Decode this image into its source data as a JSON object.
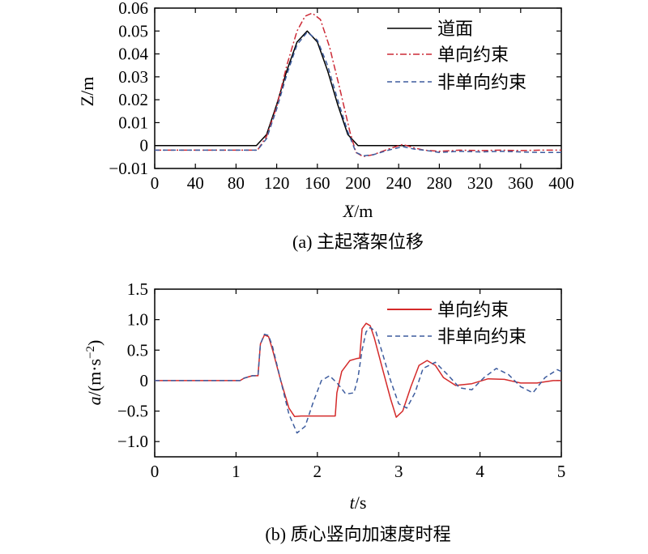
{
  "chart_data": [
    {
      "type": "line",
      "caption": "(a) 主起落架位移",
      "xlabel_var": "X",
      "xlabel_unit": "/m",
      "ylabel": "Z/m",
      "xlim": [
        0,
        400
      ],
      "ylim": [
        -0.01,
        0.06
      ],
      "x_ticks": [
        0,
        40,
        80,
        120,
        160,
        200,
        240,
        280,
        320,
        360,
        400
      ],
      "y_ticks": [
        {
          "v": 0.06,
          "label": "0.06"
        },
        {
          "v": 0.05,
          "label": "0.05"
        },
        {
          "v": 0.04,
          "label": "0.04"
        },
        {
          "v": 0.03,
          "label": "0.03"
        },
        {
          "v": 0.02,
          "label": "0.02"
        },
        {
          "v": 0.01,
          "label": "0.01"
        },
        {
          "v": 0,
          "label": "0"
        },
        {
          "v": -0.01,
          "label": "−0.01"
        }
      ],
      "grid": false,
      "legend": "top-right",
      "series": [
        {
          "name": "道面",
          "color": "#000000",
          "dash": "solid",
          "x": [
            0,
            100,
            110,
            120,
            130,
            140,
            150,
            160,
            170,
            180,
            190,
            200,
            400
          ],
          "y": [
            0,
            0,
            0.0048,
            0.0179,
            0.0327,
            0.0452,
            0.05,
            0.0452,
            0.0327,
            0.0179,
            0.0048,
            0,
            0
          ]
        },
        {
          "name": "单向约束",
          "color": "#cc2a36",
          "dash": "dashdot",
          "x": [
            0,
            101,
            110,
            120,
            130,
            140,
            148,
            155,
            163,
            172,
            182,
            192,
            198,
            205,
            215,
            230,
            244,
            255,
            265,
            280,
            300,
            320,
            340,
            360,
            380,
            400
          ],
          "y": [
            -0.002,
            -0.002,
            0.004,
            0.017,
            0.035,
            0.05,
            0.0565,
            0.0578,
            0.055,
            0.043,
            0.025,
            0.006,
            -0.003,
            -0.0048,
            -0.004,
            -0.0015,
            0.0005,
            -0.001,
            -0.002,
            -0.0025,
            -0.002,
            -0.0022,
            -0.002,
            -0.0022,
            -0.002,
            -0.002
          ]
        },
        {
          "name": "非单向约束",
          "color": "#3d5c9e",
          "dash": "dashed",
          "x": [
            0,
            101,
            110,
            120,
            130,
            140,
            150,
            160,
            170,
            180,
            190,
            198,
            205,
            215,
            230,
            244,
            255,
            265,
            280,
            300,
            320,
            340,
            360,
            380,
            400
          ],
          "y": [
            -0.002,
            -0.002,
            0.003,
            0.016,
            0.031,
            0.044,
            0.0495,
            0.046,
            0.035,
            0.02,
            0.006,
            -0.003,
            -0.0045,
            -0.004,
            -0.002,
            -0.0005,
            -0.0015,
            -0.002,
            -0.003,
            -0.0025,
            -0.0028,
            -0.0025,
            -0.0028,
            -0.003,
            -0.003
          ]
        }
      ]
    },
    {
      "type": "line",
      "caption": "(b) 质心竖向加速度时程",
      "xlabel_var": "t",
      "xlabel_unit": "/s",
      "ylabel_var": "a",
      "ylabel_unit_main": "/(m·s",
      "ylabel_unit_sup": "−2",
      "ylabel_unit_close": ")",
      "xlim": [
        0,
        5
      ],
      "ylim": [
        -1.25,
        1.5
      ],
      "x_ticks": [
        0,
        1,
        2,
        3,
        4,
        5
      ],
      "y_ticks": [
        {
          "v": 1.5,
          "label": "1.5"
        },
        {
          "v": 1.0,
          "label": "1.0"
        },
        {
          "v": 0.5,
          "label": "0.5"
        },
        {
          "v": 0,
          "label": "0"
        },
        {
          "v": -0.5,
          "label": "−0.5"
        },
        {
          "v": -1.0,
          "label": "−1.0"
        }
      ],
      "grid": false,
      "legend": "top-right",
      "series": [
        {
          "name": "单向约束",
          "color": "#d42a2a",
          "dash": "solid",
          "x": [
            0,
            1.05,
            1.1,
            1.2,
            1.27,
            1.3,
            1.35,
            1.4,
            1.45,
            1.55,
            1.65,
            1.72,
            1.8,
            2.0,
            2.22,
            2.24,
            2.3,
            2.4,
            2.48,
            2.52,
            2.55,
            2.6,
            2.65,
            2.7,
            2.8,
            2.9,
            2.97,
            3.05,
            3.15,
            3.25,
            3.35,
            3.45,
            3.55,
            3.7,
            3.9,
            4.1,
            4.3,
            4.5,
            4.7,
            4.9,
            5.0
          ],
          "y": [
            0,
            0,
            0.04,
            0.08,
            0.08,
            0.6,
            0.75,
            0.72,
            0.5,
            0.0,
            -0.45,
            -0.59,
            -0.58,
            -0.58,
            -0.58,
            -0.2,
            0.15,
            0.33,
            0.36,
            0.37,
            0.85,
            0.94,
            0.9,
            0.7,
            0.2,
            -0.3,
            -0.6,
            -0.5,
            -0.1,
            0.25,
            0.33,
            0.25,
            0.05,
            -0.08,
            -0.05,
            0.03,
            0.02,
            -0.04,
            -0.04,
            0.0,
            0.0
          ]
        },
        {
          "name": "非单向约束",
          "color": "#3d5c9e",
          "dash": "dashed",
          "x": [
            0,
            1.05,
            1.1,
            1.2,
            1.27,
            1.3,
            1.35,
            1.4,
            1.45,
            1.55,
            1.65,
            1.75,
            1.85,
            1.95,
            2.05,
            2.15,
            2.25,
            2.35,
            2.45,
            2.5,
            2.55,
            2.6,
            2.65,
            2.72,
            2.8,
            2.9,
            3.0,
            3.1,
            3.2,
            3.3,
            3.45,
            3.6,
            3.75,
            3.9,
            4.05,
            4.2,
            4.35,
            4.5,
            4.65,
            4.8,
            4.95,
            5.0
          ],
          "y": [
            0,
            0,
            0.04,
            0.08,
            0.08,
            0.6,
            0.76,
            0.74,
            0.55,
            0.0,
            -0.55,
            -0.86,
            -0.75,
            -0.35,
            0.0,
            0.08,
            -0.05,
            -0.22,
            -0.2,
            0.05,
            0.5,
            0.8,
            0.87,
            0.8,
            0.45,
            0.0,
            -0.38,
            -0.45,
            -0.2,
            0.2,
            0.3,
            0.1,
            -0.12,
            -0.15,
            0.05,
            0.2,
            0.1,
            -0.1,
            -0.2,
            0.05,
            0.18,
            0.15
          ]
        }
      ]
    }
  ]
}
